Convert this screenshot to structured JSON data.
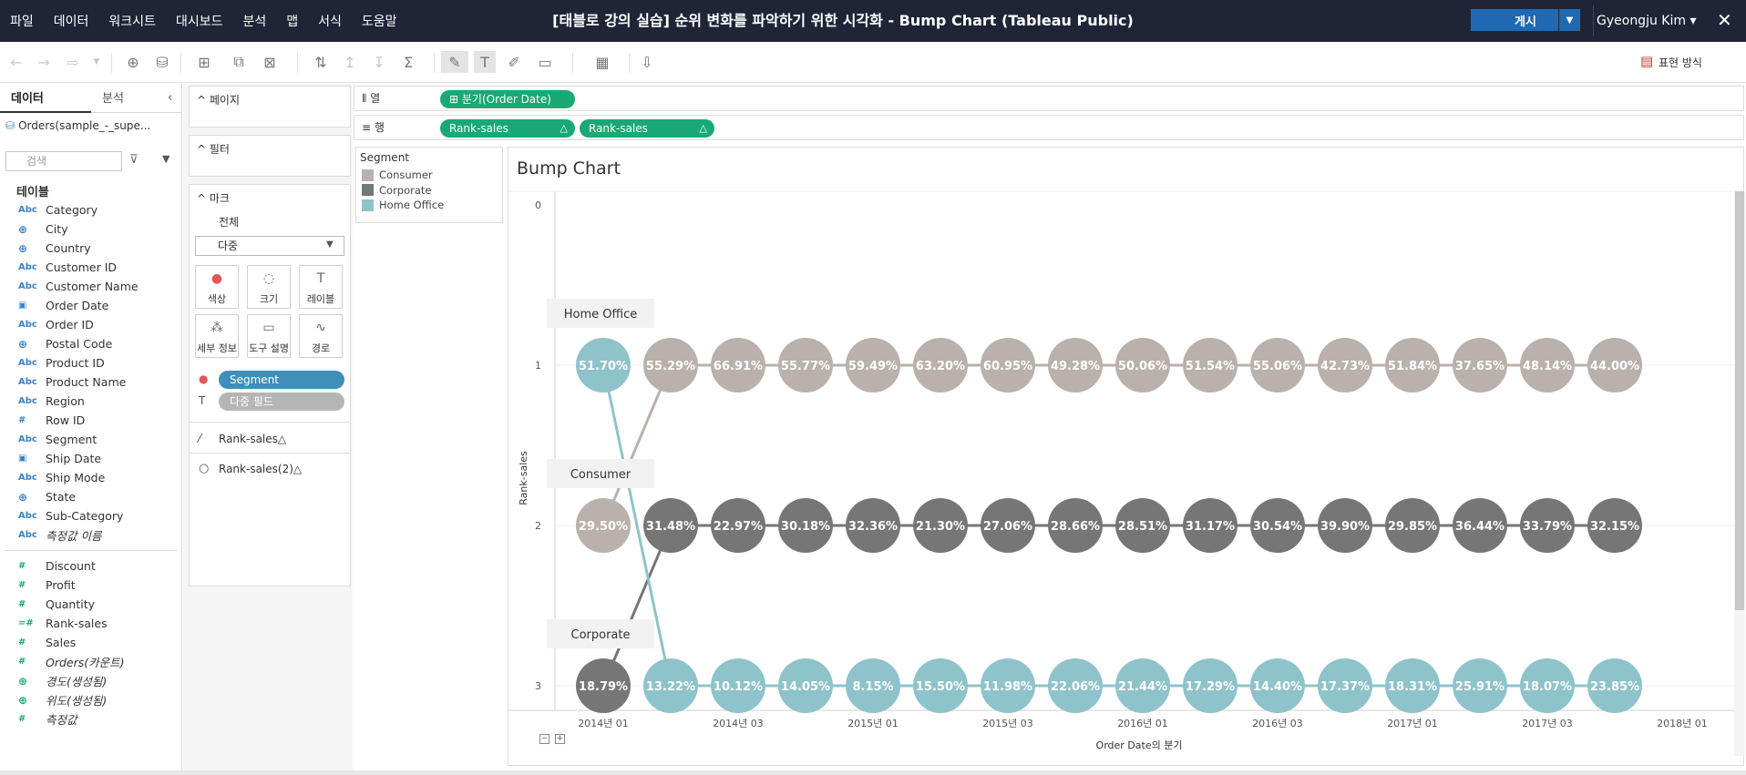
{
  "menubar": {
    "menus": [
      "파일",
      "데이터",
      "워크시트",
      "대시보드",
      "분석",
      "맵",
      "서식",
      "도움말"
    ],
    "title": "[태블로 강의 실습] 순위 변화를 파악하기 위한 시각화 - Bump Chart (Tableau Public)",
    "publish_label": "게시",
    "user": "Gyeongju Kim ▾",
    "close": "✕"
  },
  "toolbar": {
    "show_me_label": "표현 방식"
  },
  "datapane": {
    "tab_data": "데이터",
    "tab_analysis": "분석",
    "datasource": "Orders(sample_-_supe...",
    "search_placeholder": "검색",
    "tables_label": "테이블",
    "dimensions": [
      {
        "type": "Abc",
        "name": "Category"
      },
      {
        "type": "geo",
        "name": "City"
      },
      {
        "type": "geo",
        "name": "Country"
      },
      {
        "type": "Abc",
        "name": "Customer ID"
      },
      {
        "type": "Abc",
        "name": "Customer Name"
      },
      {
        "type": "date",
        "name": "Order Date"
      },
      {
        "type": "Abc",
        "name": "Order ID"
      },
      {
        "type": "geo",
        "name": "Postal Code"
      },
      {
        "type": "Abc",
        "name": "Product ID"
      },
      {
        "type": "Abc",
        "name": "Product Name"
      },
      {
        "type": "Abc",
        "name": "Region"
      },
      {
        "type": "#",
        "name": "Row ID"
      },
      {
        "type": "Abc",
        "name": "Segment"
      },
      {
        "type": "date",
        "name": "Ship Date"
      },
      {
        "type": "Abc",
        "name": "Ship Mode"
      },
      {
        "type": "geo",
        "name": "State"
      },
      {
        "type": "Abc",
        "name": "Sub-Category"
      },
      {
        "type": "Abc",
        "name": "측정값 이름",
        "italic": true
      }
    ],
    "measures": [
      {
        "type": "#",
        "name": "Discount"
      },
      {
        "type": "#",
        "name": "Profit"
      },
      {
        "type": "#",
        "name": "Quantity"
      },
      {
        "type": "=#",
        "name": "Rank-sales"
      },
      {
        "type": "#",
        "name": "Sales"
      },
      {
        "type": "#",
        "name": "Orders(카운트)",
        "italic": true
      },
      {
        "type": "geo",
        "name": "경도(생성됨)",
        "italic": true
      },
      {
        "type": "geo",
        "name": "위도(생성됨)",
        "italic": true
      },
      {
        "type": "#",
        "name": "측정값",
        "italic": true
      }
    ]
  },
  "cards": {
    "pages": "페이지",
    "filters": "필터",
    "marks": "마크",
    "marks_all": "전체",
    "mark_type": "다중",
    "buttons": [
      "색상",
      "크기",
      "레이블",
      "세부 정보",
      "도구 설명",
      "경로"
    ],
    "segment_pill": "Segment",
    "multi_field_pill": "다중 필드",
    "rank_sales": "Rank-sales△",
    "rank_sales2": "Rank-sales(2)△"
  },
  "shelves": {
    "columns_label": "열",
    "rows_label": "행",
    "columns_pill": "분기(Order Date)",
    "rows_pill1": "Rank-sales",
    "rows_pill2": "Rank-sales",
    "delta": "△"
  },
  "legend": {
    "title": "Segment",
    "items": [
      {
        "name": "Consumer",
        "color": "#bab0ac"
      },
      {
        "name": "Corporate",
        "color": "#767676"
      },
      {
        "name": "Home Office",
        "color": "#8fc3cb"
      }
    ]
  },
  "viz": {
    "title": "Bump Chart",
    "xlabel": "Order Date의 분기",
    "ylabel": "Rank-sales",
    "y_ticks": [
      "0",
      "1",
      "2",
      "3"
    ],
    "x_ticks": [
      "2014년 01",
      "2014년 03",
      "2015년 01",
      "2015년 03",
      "2016년 01",
      "2016년 03",
      "2017년 01",
      "2017년 03",
      "2018년 01"
    ]
  },
  "chart_data": {
    "type": "line",
    "title": "Bump Chart",
    "xlabel": "Order Date의 분기",
    "ylabel": "Rank-sales",
    "ylim": [
      0,
      3
    ],
    "reversed_y": true,
    "quarters": 16,
    "series": [
      {
        "name": "Consumer",
        "color": "#bab0ac",
        "ranks": [
          2,
          1,
          1,
          1,
          1,
          1,
          1,
          1,
          1,
          1,
          1,
          1,
          1,
          1,
          1,
          1
        ],
        "labels": [
          "29.50%",
          "55.29%",
          "66.91%",
          "55.77%",
          "59.49%",
          "63.20%",
          "60.95%",
          "49.28%",
          "50.06%",
          "51.54%",
          "55.06%",
          "42.73%",
          "51.84%",
          "37.65%",
          "48.14%",
          "44.00%"
        ]
      },
      {
        "name": "Corporate",
        "color": "#767676",
        "ranks": [
          3,
          2,
          2,
          2,
          2,
          2,
          2,
          2,
          2,
          2,
          2,
          2,
          2,
          2,
          2,
          2
        ],
        "labels": [
          "18.79%",
          "31.48%",
          "22.97%",
          "30.18%",
          "32.36%",
          "21.30%",
          "27.06%",
          "28.66%",
          "28.51%",
          "31.17%",
          "30.54%",
          "39.90%",
          "29.85%",
          "36.44%",
          "33.79%",
          "32.15%"
        ]
      },
      {
        "name": "Home Office",
        "color": "#8fc3cb",
        "ranks": [
          1,
          3,
          3,
          3,
          3,
          3,
          3,
          3,
          3,
          3,
          3,
          3,
          3,
          3,
          3,
          3
        ],
        "labels": [
          "51.70%",
          "13.22%",
          "10.12%",
          "14.05%",
          "8.15%",
          "15.50%",
          "11.98%",
          "22.06%",
          "21.44%",
          "17.29%",
          "14.40%",
          "17.37%",
          "18.31%",
          "25.91%",
          "18.07%",
          "23.85%"
        ]
      }
    ]
  }
}
